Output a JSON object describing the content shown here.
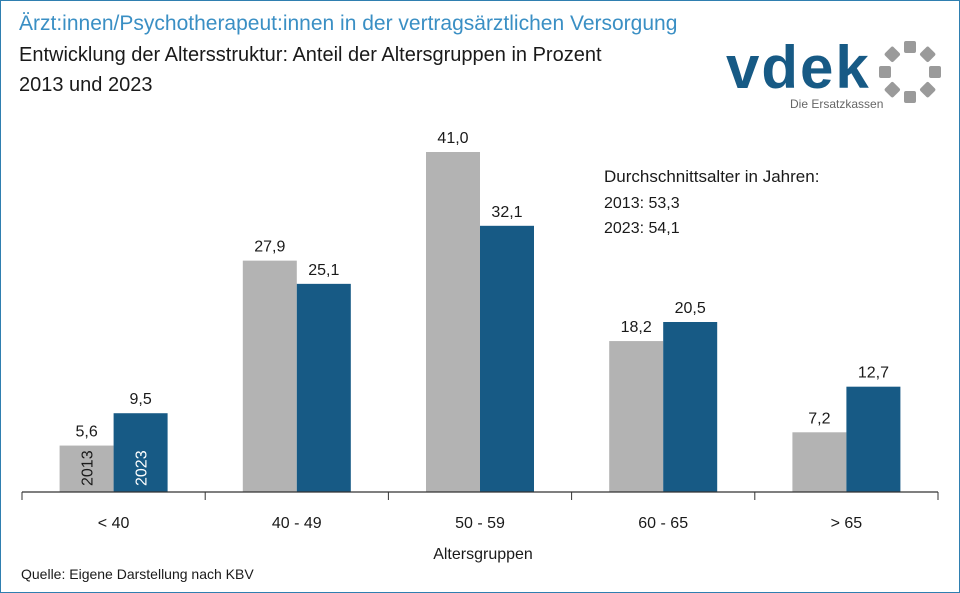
{
  "header": {
    "title": "Ärzt:innen/Psychotherapeut:innen in der vertragsärztlichen Versorgung",
    "subtitle": "Entwicklung der Altersstruktur:  Anteil der Altersgruppen in Prozent",
    "subtitle2": "2013 und 2023"
  },
  "logo": {
    "wordmark": "vdek",
    "tagline": "Die Ersatzkassen",
    "icon": "vdek-ring-logo-icon"
  },
  "annotation": {
    "heading": "Durchschnittsalter in Jahren:",
    "line_2013": "2013:  53,3",
    "line_2023": "2023:  54,1"
  },
  "footer": {
    "source": "Quelle: Eigene Darstellung nach KBV"
  },
  "chart_data": {
    "type": "bar",
    "xlabel": "Altersgruppen",
    "ylabel": "",
    "ylim": [
      0,
      41
    ],
    "grid": false,
    "categories": [
      "< 40",
      "40 - 49",
      "50 - 59",
      "60 - 65",
      "> 65"
    ],
    "series": [
      {
        "name": "2013",
        "color": "#b3b3b3",
        "values": [
          5.6,
          27.9,
          41.0,
          18.2,
          7.2
        ],
        "labels": [
          "5,6",
          "27,9",
          "41,0",
          "18,2",
          "7,2"
        ]
      },
      {
        "name": "2023",
        "color": "#175a85",
        "values": [
          9.5,
          25.1,
          32.1,
          20.5,
          12.7
        ],
        "labels": [
          "9,5",
          "25,1",
          "32,1",
          "20,5",
          "12,7"
        ]
      }
    ]
  }
}
